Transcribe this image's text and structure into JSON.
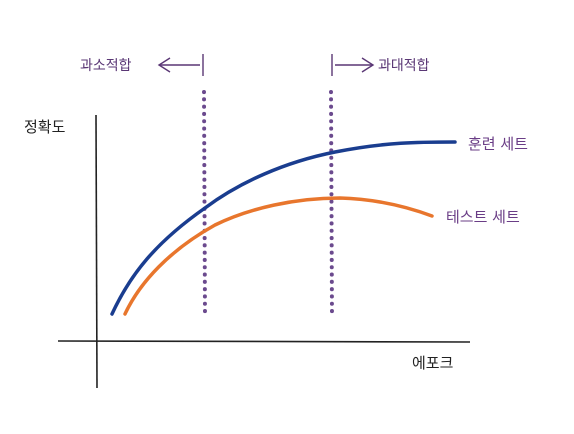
{
  "axes": {
    "y_label": "정확도",
    "x_label": "에포크"
  },
  "curves": {
    "train_label": "훈련 세트",
    "test_label": "테스트 세트",
    "train_color": "#1a3d8f",
    "test_color": "#e8762d"
  },
  "regions": {
    "underfit_label": "과소적합",
    "overfit_label": "과대적합",
    "divider_color": "#6b4a8e"
  }
}
